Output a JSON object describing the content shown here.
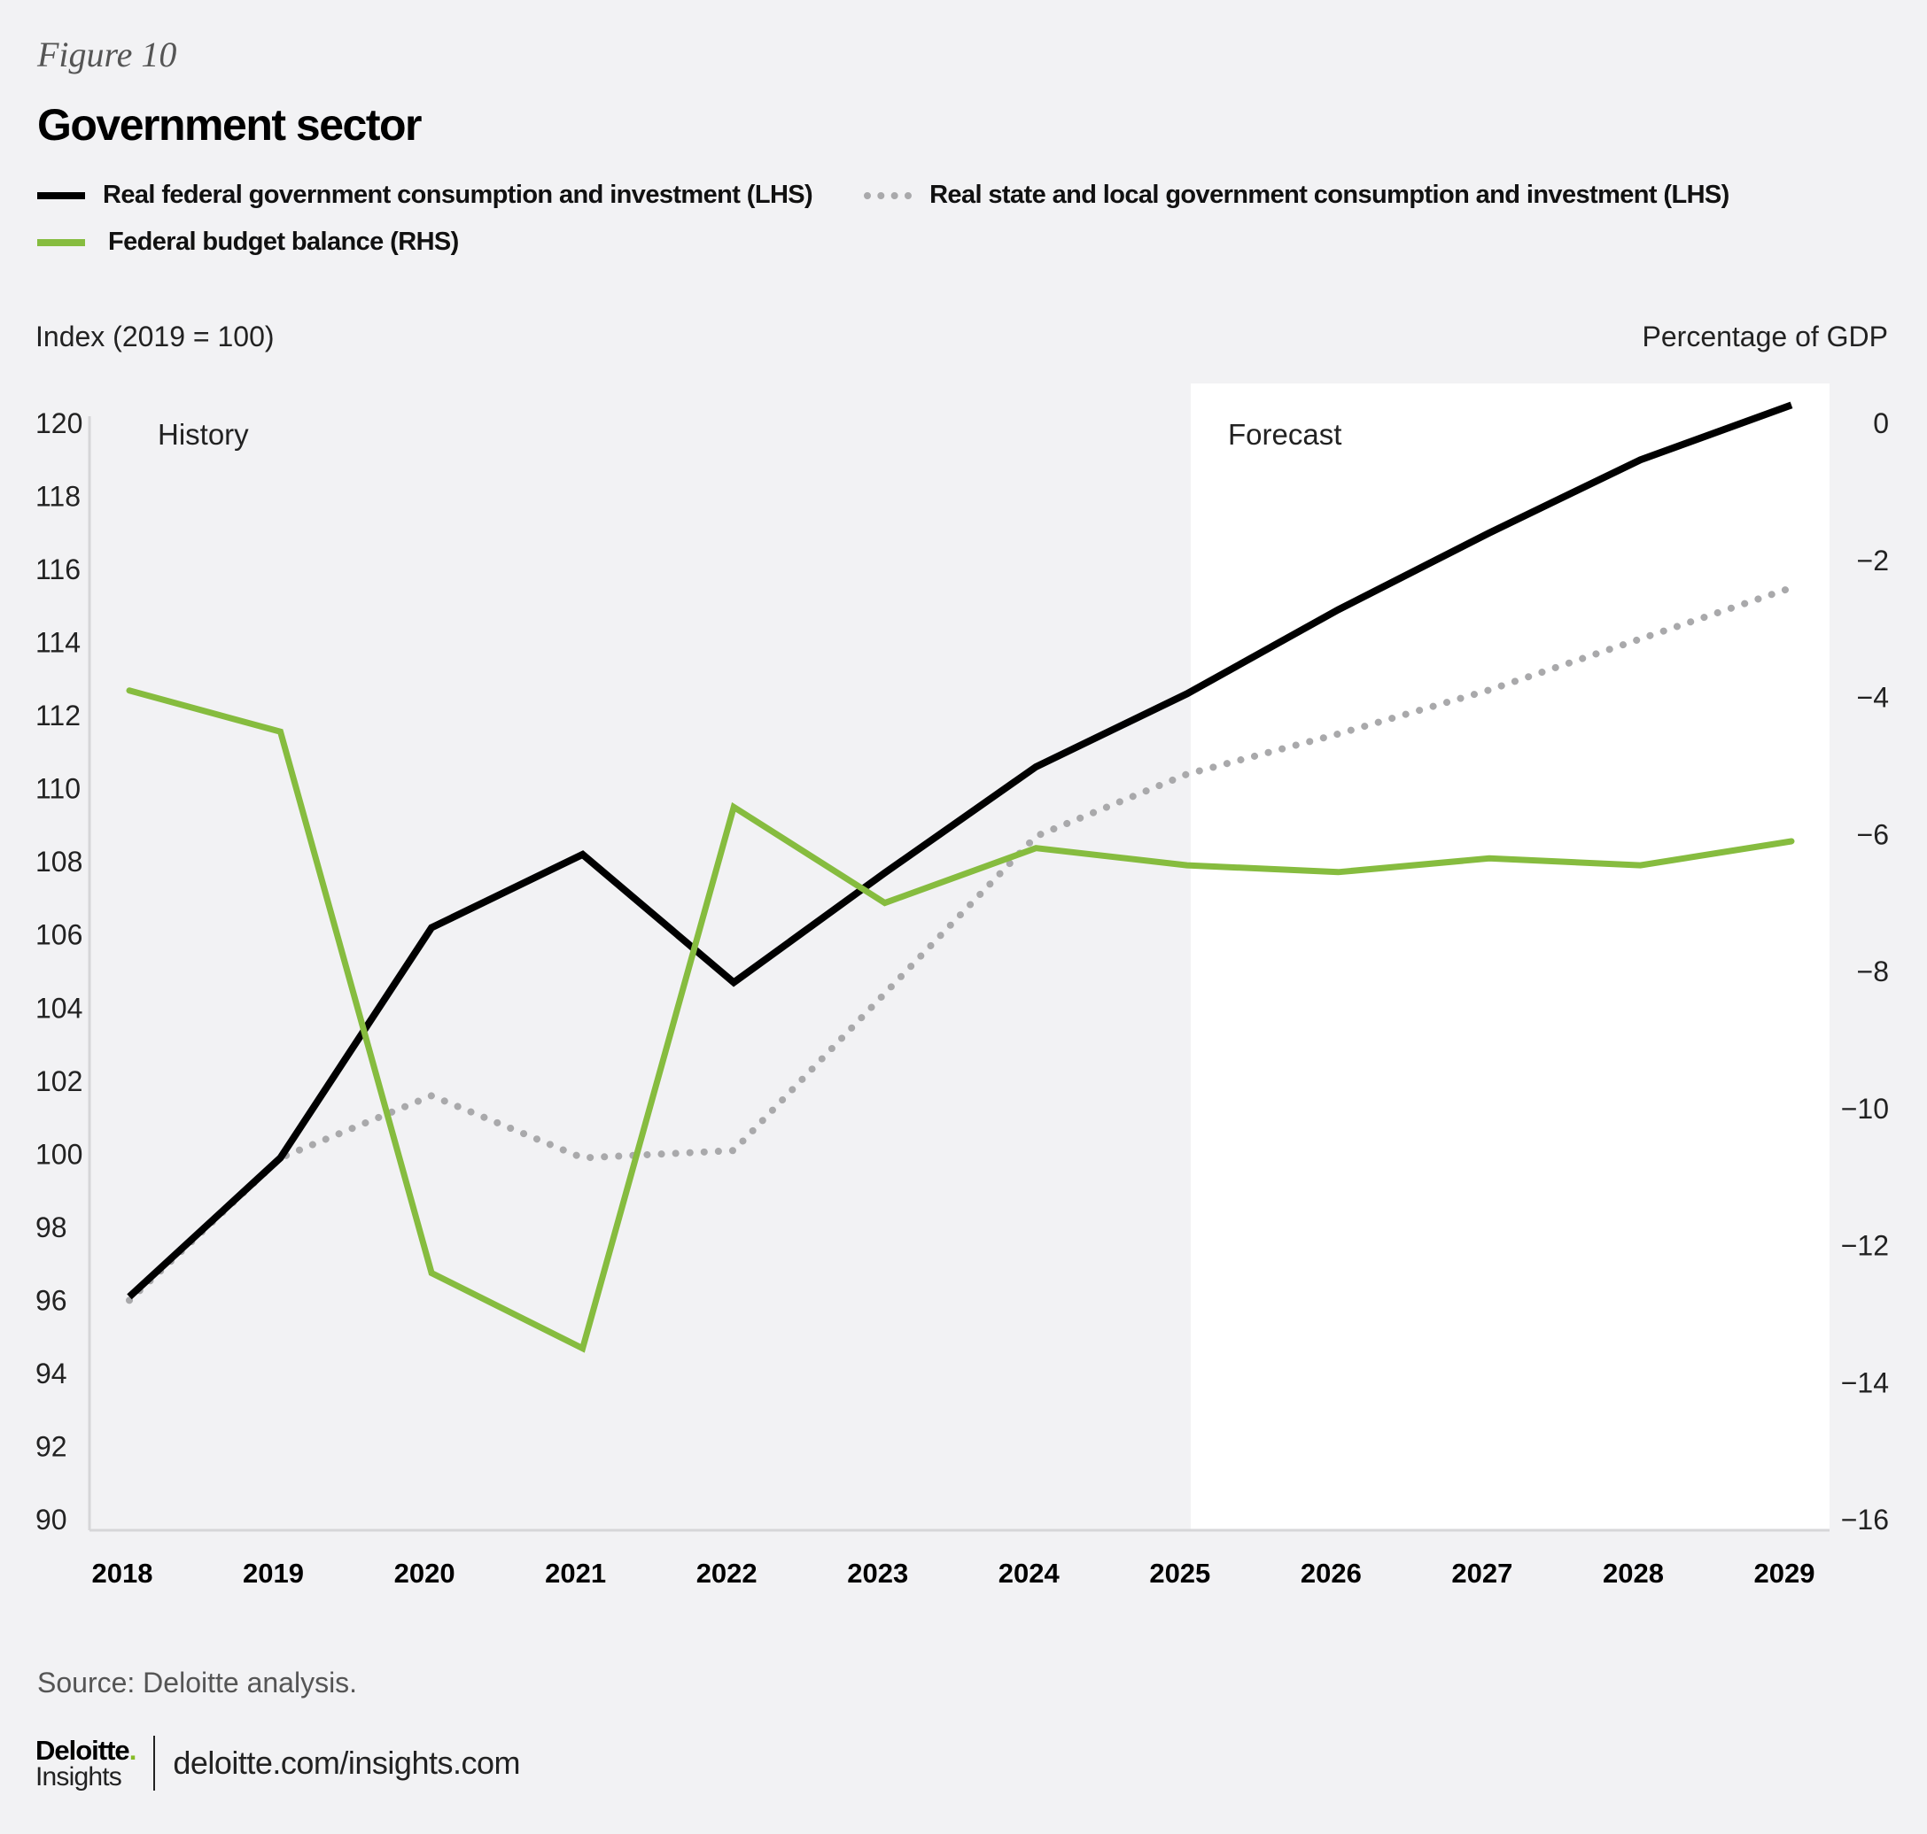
{
  "figure_label": "Figure 10",
  "title": "Government sector",
  "legend": [
    {
      "label": "Real federal government consumption and investment (LHS)",
      "color": "#000000",
      "style": "solid"
    },
    {
      "label": "Real state and local government consumption and investment  (LHS)",
      "color": "#a9a9ab",
      "style": "dotted"
    },
    {
      "label": "Federal budget balance (RHS)",
      "color": "#86bc3f",
      "style": "solid"
    }
  ],
  "source": "Source: Deloitte analysis.",
  "footer": {
    "logo_main": "Deloitte",
    "logo_dot": ".",
    "logo_sub": "Insights",
    "url": "deloitte.com/insights.com"
  },
  "chart_data": {
    "type": "line",
    "x": [
      "2018",
      "2019",
      "2020",
      "2021",
      "2022",
      "2023",
      "2024",
      "2025",
      "2026",
      "2027",
      "2028",
      "2029"
    ],
    "ylabel_left": "Index (2019 = 100)",
    "ylabel_right": "Percentage of GDP",
    "ylim_left": [
      90,
      120
    ],
    "ylim_right": [
      -16,
      0
    ],
    "yticks_left": [
      "120",
      "118",
      "116",
      "114",
      "112",
      "110",
      "108",
      "106",
      "104",
      "102",
      "100",
      "98",
      "96",
      "94",
      "92",
      "90"
    ],
    "yticks_right": [
      "0",
      "−2",
      "−4",
      "−6",
      "−8",
      "−10",
      "−12",
      "−14",
      "−16"
    ],
    "grid": false,
    "legend_position": "top-left",
    "regions": [
      {
        "label": "History",
        "from": "2018",
        "to": "2025"
      },
      {
        "label": "Forecast",
        "from": "2025",
        "to": "2029",
        "fill": "#ffffff"
      }
    ],
    "series": [
      {
        "name": "Real federal government consumption and investment (LHS)",
        "axis": "left",
        "color": "#000000",
        "style": "solid",
        "values": [
          96.1,
          99.9,
          106.2,
          108.2,
          104.7,
          107.7,
          110.6,
          112.6,
          114.9,
          117.0,
          119.0,
          120.5
        ]
      },
      {
        "name": "Real state and local government consumption and investment (LHS)",
        "axis": "left",
        "color": "#a9a9ab",
        "style": "dotted",
        "values": [
          96.0,
          99.9,
          101.6,
          99.9,
          100.1,
          104.4,
          108.7,
          110.4,
          111.5,
          112.7,
          114.1,
          115.5
        ]
      },
      {
        "name": "Federal budget balance (RHS)",
        "axis": "right",
        "color": "#86bc3f",
        "style": "solid",
        "values": [
          -3.9,
          -4.5,
          -12.4,
          -13.5,
          -5.6,
          -7.0,
          -6.2,
          -6.45,
          -6.55,
          -6.35,
          -6.45,
          -6.1
        ]
      }
    ]
  }
}
